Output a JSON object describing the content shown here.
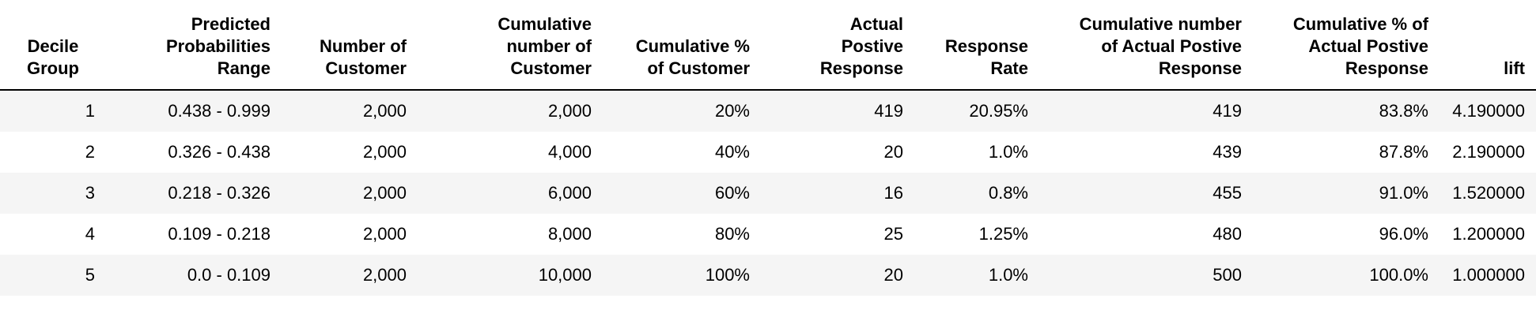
{
  "table": {
    "headers": [
      [
        "Decile",
        "Group"
      ],
      [
        "Predicted",
        "Probabilities",
        "Range"
      ],
      [
        "Number of",
        "Customer"
      ],
      [
        "Cumulative",
        "number of",
        "Customer"
      ],
      [
        "Cumulative %",
        "of Customer"
      ],
      [
        "Actual",
        "Postive",
        "Response"
      ],
      [
        "Response",
        "Rate"
      ],
      [
        "Cumulative number",
        "of Actual Postive",
        "Response"
      ],
      [
        "Cumulative % of",
        "Actual Postive",
        "Response"
      ],
      [
        "lift"
      ]
    ],
    "rows": [
      [
        "1",
        "0.438 - 0.999",
        "2,000",
        "2,000",
        "20%",
        "419",
        "20.95%",
        "419",
        "83.8%",
        "4.190000"
      ],
      [
        "2",
        "0.326 - 0.438",
        "2,000",
        "4,000",
        "40%",
        "20",
        "1.0%",
        "439",
        "87.8%",
        "2.190000"
      ],
      [
        "3",
        "0.218 - 0.326",
        "2,000",
        "6,000",
        "60%",
        "16",
        "0.8%",
        "455",
        "91.0%",
        "1.520000"
      ],
      [
        "4",
        "0.109 - 0.218",
        "2,000",
        "8,000",
        "80%",
        "25",
        "1.25%",
        "480",
        "96.0%",
        "1.200000"
      ],
      [
        "5",
        "0.0 - 0.109",
        "2,000",
        "10,000",
        "100%",
        "20",
        "1.0%",
        "500",
        "100.0%",
        "1.000000"
      ]
    ]
  },
  "colors": {
    "stripe": "#f5f5f5",
    "rule": "#000000"
  }
}
